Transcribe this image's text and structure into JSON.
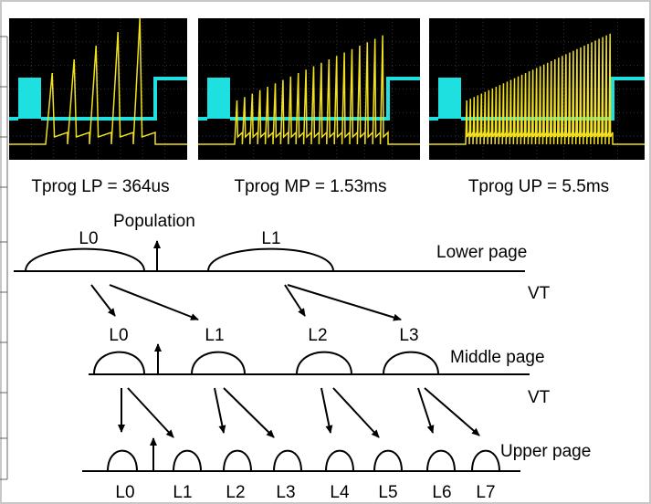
{
  "scopes": [
    {
      "caption": "Tprog LP = 364us"
    },
    {
      "caption": "Tprog MP = 1.53ms"
    },
    {
      "caption": "Tprog UP = 5.5ms"
    }
  ],
  "axis_label": "Population",
  "rows": [
    {
      "page": "Lower page",
      "axis": "VT",
      "levels": [
        "L0",
        "L1"
      ]
    },
    {
      "page": "Middle page",
      "axis": "VT",
      "levels": [
        "L0",
        "L1",
        "L2",
        "L3"
      ]
    },
    {
      "page": "Upper page",
      "levels": [
        "L0",
        "L1",
        "L2",
        "L3",
        "L4",
        "L5",
        "L6",
        "L7"
      ]
    }
  ]
}
